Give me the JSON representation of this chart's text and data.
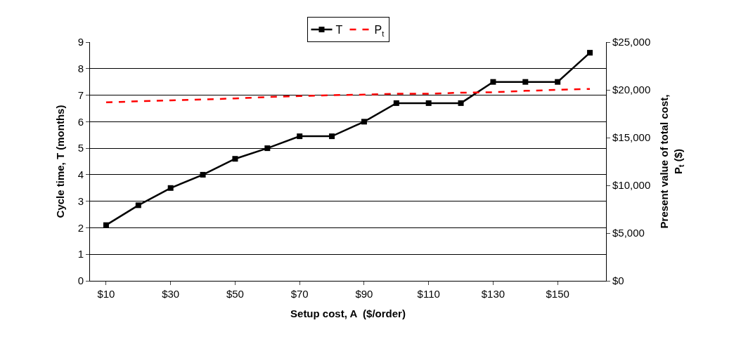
{
  "chart_data": {
    "type": "line",
    "xlabel": "Setup cost, A  ($/order)",
    "ylabel": "Cycle time, T (months)",
    "y2label": "Present value of total cost, P$_{t}$ ($)",
    "categories": [
      "$10",
      null,
      "$30",
      null,
      "$50",
      null,
      "$70",
      null,
      "$90",
      null,
      "$110",
      null,
      "$130",
      null,
      "$150",
      null
    ],
    "series": [
      {
        "name": "T",
        "color": "#000000",
        "marker": "square",
        "line_style": "solid",
        "values": [
          2.1,
          2.85,
          3.5,
          4.0,
          4.6,
          5.0,
          5.45,
          5.45,
          6.0,
          6.7,
          6.7,
          6.7,
          7.5,
          7.5,
          7.5,
          8.6
        ]
      },
      {
        "name": "P$_{t}$",
        "color": "#ff0000",
        "marker": "none",
        "line_style": "dashed",
        "axis": "y2",
        "values": [
          18700,
          18800,
          18900,
          19000,
          19100,
          19250,
          19350,
          19450,
          19500,
          19600,
          19600,
          19700,
          19750,
          19900,
          20000,
          20100
        ]
      }
    ],
    "ylim": [
      0,
      9
    ],
    "yticks": [
      0,
      1,
      2,
      3,
      4,
      5,
      6,
      7,
      8,
      9
    ],
    "y2lim": [
      0,
      25000
    ],
    "y2ticks": [
      {
        "value": 0,
        "label": "$0"
      },
      {
        "value": 5000,
        "label": "$5,000"
      },
      {
        "value": 10000,
        "label": "$10,000"
      },
      {
        "value": 15000,
        "label": "$15,000"
      },
      {
        "value": 20000,
        "label": "$20,000"
      },
      {
        "value": 25000,
        "label": "$25,000"
      }
    ],
    "grid": "y",
    "legend": "top"
  }
}
